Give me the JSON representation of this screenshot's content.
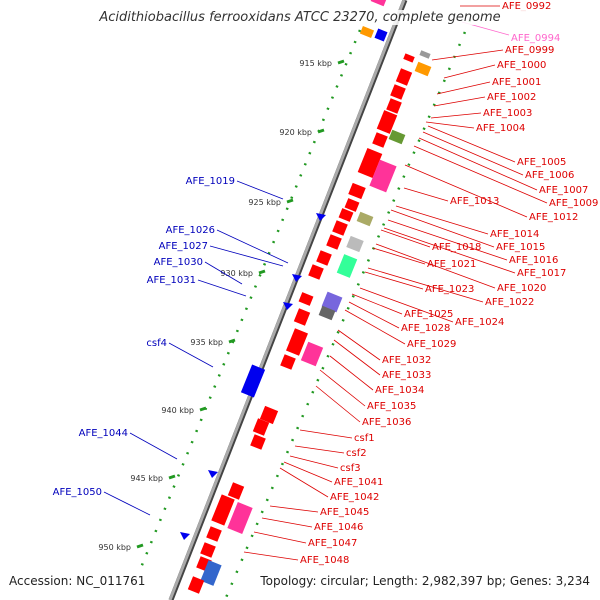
{
  "title": "Acidithiobacillus ferrooxidans ATCC 23270, complete genome",
  "accession": "Accession: NC_011761",
  "summary": "Topology: circular; Length: 2,982,397 bp; Genes: 3,234",
  "colors": {
    "backbone": "#777777",
    "plus_label": "#dd0000",
    "minus_label": "#0000bb",
    "pseudo_label": "#ff66cc",
    "tick": "#229922"
  },
  "kbp_ticks": [
    "915 kbp",
    "920 kbp",
    "925 kbp",
    "930 kbp",
    "935 kbp",
    "940 kbp",
    "945 kbp",
    "950 kbp"
  ],
  "minus_strand_labels": [
    "AFE_1019",
    "AFE_1026",
    "AFE_1027",
    "AFE_1030",
    "AFE_1031",
    "csf4",
    "AFE_1044",
    "AFE_1050"
  ],
  "plus_strand_labels": [
    "AFE_0992",
    "AFE_0999",
    "AFE_1000",
    "AFE_1001",
    "AFE_1002",
    "AFE_1003",
    "AFE_1004",
    "AFE_1005",
    "AFE_1006",
    "AFE_1007",
    "AFE_1009",
    "AFE_1012",
    "AFE_1013",
    "AFE_1014",
    "AFE_1015",
    "AFE_1016",
    "AFE_1017",
    "AFE_1018",
    "AFE_1020",
    "AFE_1021",
    "AFE_1022",
    "AFE_1023",
    "AFE_1024",
    "AFE_1025",
    "AFE_1028",
    "AFE_1029",
    "AFE_1032",
    "AFE_1033",
    "AFE_1034",
    "AFE_1035",
    "AFE_1036",
    "csf1",
    "csf2",
    "csf3",
    "AFE_1041",
    "AFE_1042",
    "AFE_1045",
    "AFE_1046",
    "AFE_1047",
    "AFE_1048"
  ],
  "pseudo_labels": [
    "AFE_0994"
  ]
}
